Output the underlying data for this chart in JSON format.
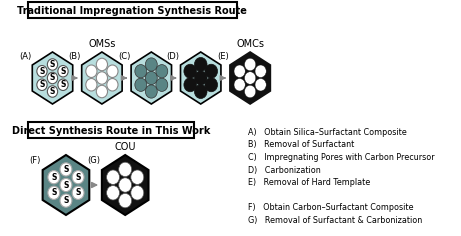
{
  "title_top": "Traditional Impregnation Synthesis Route",
  "title_bottom": "Direct Synthesis Route in This Work",
  "label_omss": "OMSs",
  "label_omcs": "OMCs",
  "label_cou": "COU",
  "legend_items_A_E": [
    "A)   Obtain Silica–Surfactant Composite",
    "B)   Removal of Surfactant",
    "C)   Impregnating Pores with Carbon Precursor",
    "D)   Carbonization",
    "E)   Removal of Hard Template"
  ],
  "legend_items_F_G": [
    "F)   Obtain Carbon–Surfactant Composite",
    "G)   Removal of Surfactant & Carbonization"
  ],
  "color_silica": "#b8dede",
  "color_dark_teal": "#5a8585",
  "color_black": "#111111",
  "color_white": "#ffffff",
  "color_bg": "#ffffff",
  "color_border": "#000000"
}
